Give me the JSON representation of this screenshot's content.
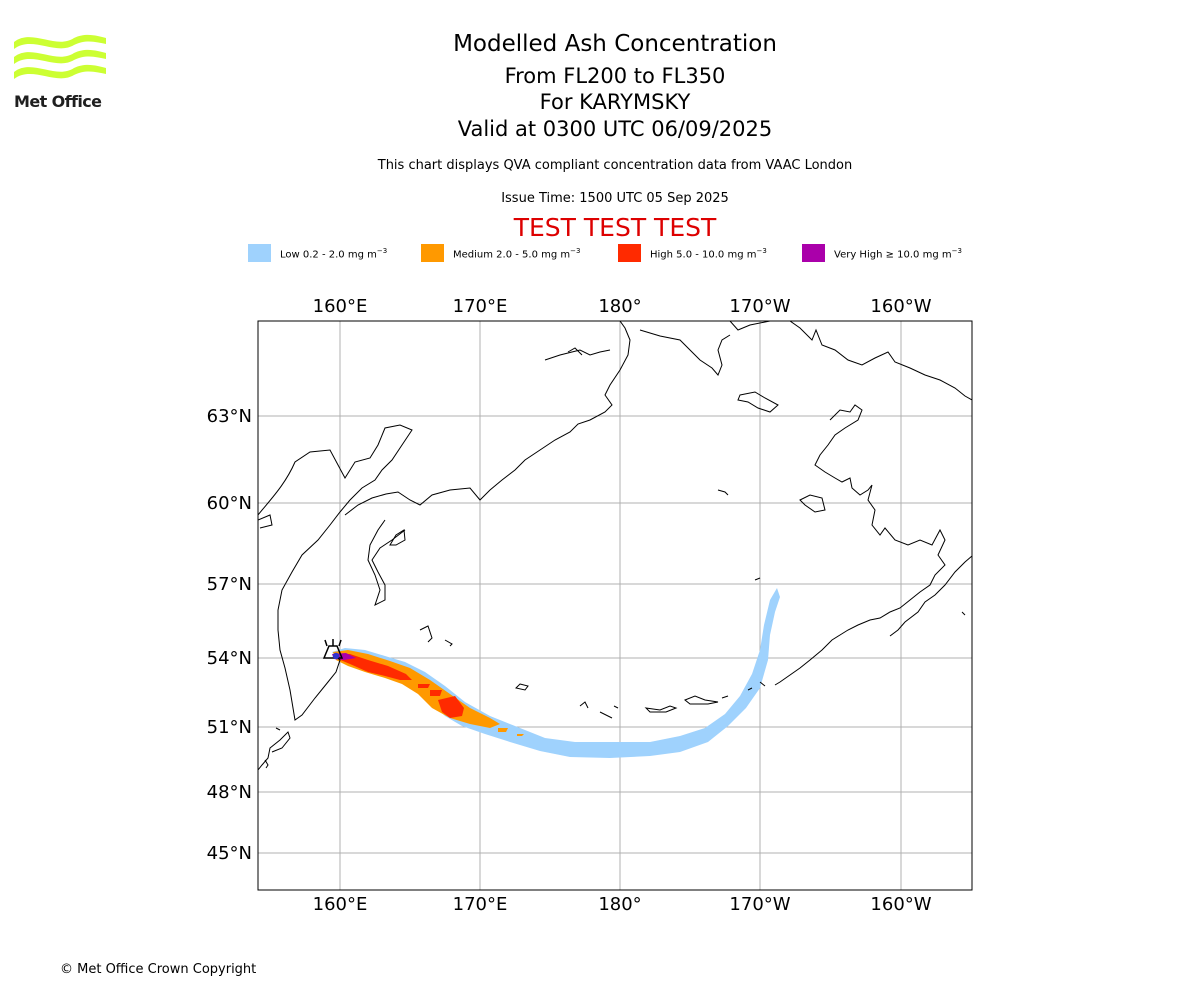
{
  "logo": {
    "text": "Met Office",
    "color": "#ccff33"
  },
  "titles": {
    "main": "Modelled Ash Concentration",
    "levels": "From FL200 to FL350",
    "volcano": "For KARYMSKY",
    "valid": "Valid at 0300 UTC 06/09/2025",
    "note": "This chart displays QVA compliant concentration data from VAAC London",
    "issue": "Issue Time: 1500 UTC 05 Sep 2025",
    "test": "TEST TEST TEST"
  },
  "legend": [
    {
      "label": "Low 0.2 - 2.0 mg m",
      "exp": "−3",
      "color": "#9fd2fd"
    },
    {
      "label": "Medium 2.0 - 5.0 mg m",
      "exp": "−3",
      "color": "#ff9900"
    },
    {
      "label": "High 5.0 - 10.0 mg m",
      "exp": "−3",
      "color": "#ff2a00"
    },
    {
      "label": "Very High  ≥  10.0 mg m",
      "exp": "−3",
      "color": "#aa00aa"
    }
  ],
  "map": {
    "lon_labels": [
      "160°E",
      "170°E",
      "180°",
      "170°W",
      "160°W"
    ],
    "lat_labels": [
      "63°N",
      "60°N",
      "57°N",
      "54°N",
      "51°N",
      "48°N",
      "45°N"
    ],
    "volcano_icon": "volcano-icon"
  },
  "footer": {
    "copyright": "© Met Office Crown Copyright"
  }
}
